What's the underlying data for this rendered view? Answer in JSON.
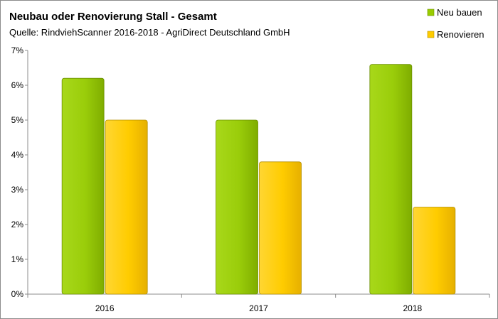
{
  "chart_data": {
    "type": "bar",
    "title": "Neubau oder Renovierung Stall - Gesamt",
    "subtitle": "Quelle: RindviehScanner 2016-2018 - AgriDirect Deutschland GmbH",
    "categories": [
      "2016",
      "2017",
      "2018"
    ],
    "series": [
      {
        "name": "Neu bauen",
        "values": [
          6.2,
          5.0,
          6.6
        ],
        "color": "#99cc00"
      },
      {
        "name": "Renovieren",
        "values": [
          5.0,
          3.8,
          2.5
        ],
        "color": "#ffcc00"
      }
    ],
    "ylim": [
      0,
      7
    ],
    "yticks": [
      "0%",
      "1%",
      "2%",
      "3%",
      "4%",
      "5%",
      "6%",
      "7%"
    ],
    "unit": "%",
    "grid": false,
    "legend": "top-right"
  }
}
